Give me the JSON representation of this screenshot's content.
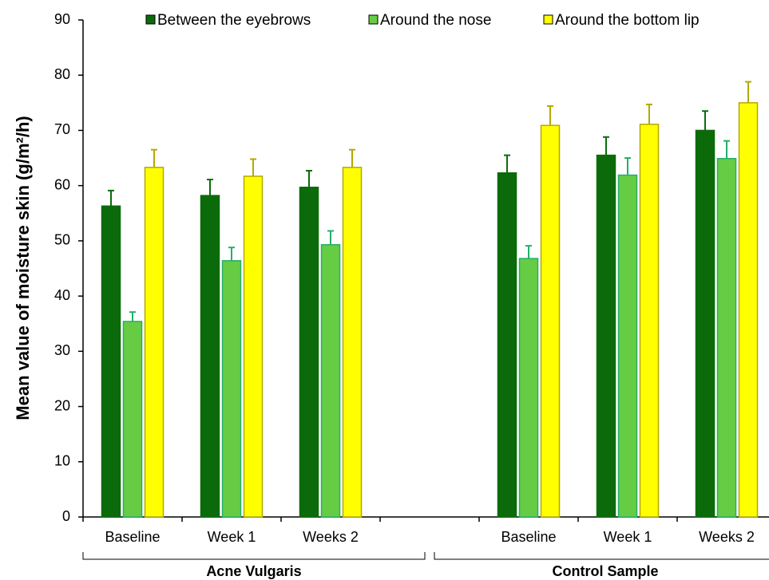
{
  "chart_data": {
    "type": "bar",
    "y_label": "Mean value of moisture skin (g/m²/h)",
    "categories": [
      "Baseline",
      "Week 1",
      "Weeks 2",
      null,
      "Baseline",
      "Week 1",
      "Weeks 2"
    ],
    "groups": [
      "Acne Vulgaris",
      "Control Sample"
    ],
    "series": [
      {
        "name": "Between the eyebrows",
        "color": "#0b6b0b",
        "error_color": "#0b6b0b",
        "values": [
          56.3,
          58.2,
          59.7,
          null,
          62.3,
          65.5,
          70.0
        ],
        "errors": [
          2.8,
          2.9,
          3.0,
          null,
          3.2,
          3.3,
          3.5
        ]
      },
      {
        "name": "Around the nose",
        "color": "#66cc44",
        "error_color": "#22b06a",
        "values": [
          35.4,
          46.4,
          49.3,
          null,
          46.8,
          61.9,
          64.9
        ],
        "errors": [
          1.7,
          2.4,
          2.5,
          null,
          2.3,
          3.1,
          3.2
        ]
      },
      {
        "name": "Around the bottom lip",
        "color": "#ffff00",
        "error_color": "#b5a800",
        "values": [
          63.3,
          61.7,
          63.3,
          null,
          70.9,
          71.1,
          75.0
        ],
        "errors": [
          3.2,
          3.1,
          3.2,
          null,
          3.5,
          3.6,
          3.8
        ]
      }
    ],
    "ylim": [
      0,
      90
    ],
    "yticks": [
      0,
      10,
      20,
      30,
      40,
      50,
      60,
      70,
      80,
      90
    ],
    "grid": false,
    "legend": "top"
  }
}
